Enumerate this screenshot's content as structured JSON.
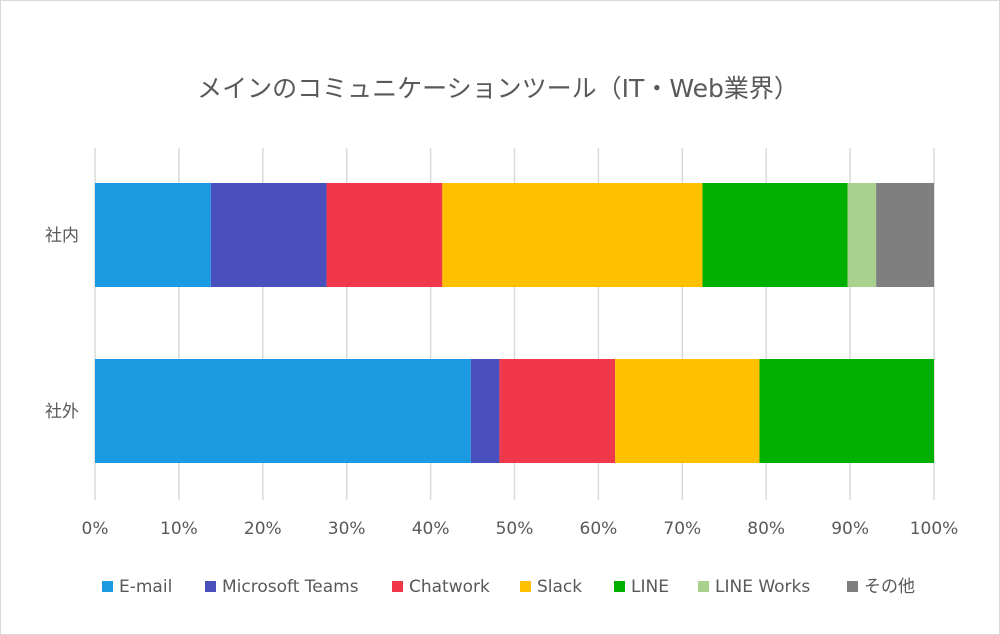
{
  "chart_data": {
    "type": "bar",
    "orientation": "horizontal",
    "stacked": "percent",
    "title": "メインのコミュニケーションツール（IT・Web業界）",
    "categories": [
      "社内",
      "社外"
    ],
    "series": [
      {
        "name": "E-mail",
        "color": "#1a9ae0",
        "values": [
          13.8,
          44.8
        ]
      },
      {
        "name": "Microsoft Teams",
        "color": "#4a4fbe",
        "values": [
          13.8,
          3.4
        ]
      },
      {
        "name": "Chatwork",
        "color": "#f0384a",
        "values": [
          13.8,
          13.8
        ]
      },
      {
        "name": "Slack",
        "color": "#ffc000",
        "values": [
          31.0,
          17.2
        ]
      },
      {
        "name": "LINE",
        "color": "#00b000",
        "values": [
          17.3,
          20.8
        ]
      },
      {
        "name": "LINE Works",
        "color": "#a9d18e",
        "values": [
          3.4,
          0
        ]
      },
      {
        "name": "その他",
        "color": "#7f7f7f",
        "values": [
          6.9,
          0
        ]
      }
    ],
    "xlim": [
      0,
      100
    ],
    "xticks": [
      "0%",
      "10%",
      "20%",
      "30%",
      "40%",
      "50%",
      "60%",
      "70%",
      "80%",
      "90%",
      "100%"
    ],
    "grid": true,
    "legend_position": "bottom"
  }
}
